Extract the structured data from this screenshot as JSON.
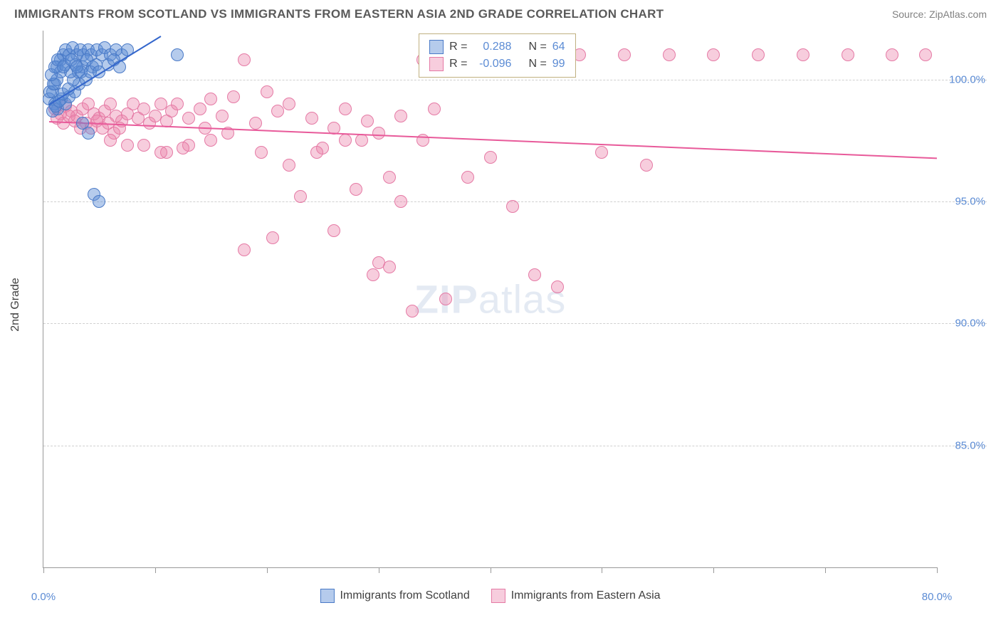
{
  "header": {
    "title": "IMMIGRANTS FROM SCOTLAND VS IMMIGRANTS FROM EASTERN ASIA 2ND GRADE CORRELATION CHART",
    "source": "Source: ZipAtlas.com"
  },
  "chart": {
    "type": "scatter",
    "y_axis_label": "2nd Grade",
    "watermark_a": "ZIP",
    "watermark_b": "atlas",
    "background_color": "#ffffff",
    "grid_color": "#d0d0d0",
    "axis_color": "#999999",
    "xlim": [
      0,
      80
    ],
    "ylim": [
      80,
      102
    ],
    "x_ticks": [
      0,
      10,
      20,
      30,
      40,
      50,
      60,
      70,
      80
    ],
    "x_tick_labels": {
      "0": "0.0%",
      "80": "80.0%"
    },
    "y_ticks": [
      85,
      90,
      95,
      100
    ],
    "y_tick_labels": {
      "85": "85.0%",
      "90": "90.0%",
      "95": "95.0%",
      "100": "100.0%"
    },
    "marker_radius": 9,
    "marker_opacity": 0.5,
    "series": [
      {
        "label": "Immigrants from Scotland",
        "color_fill": "rgba(91,139,212,0.45)",
        "color_stroke": "#4a7ac7",
        "trend_color": "#3366cc",
        "R": "0.288",
        "N": "64",
        "trend": {
          "x1": 0.5,
          "y1": 99.0,
          "x2": 10.5,
          "y2": 101.8
        },
        "points": [
          [
            0.5,
            99.2
          ],
          [
            0.8,
            99.5
          ],
          [
            1.0,
            99.8
          ],
          [
            1.2,
            100.5
          ],
          [
            1.5,
            100.8
          ],
          [
            1.8,
            101.0
          ],
          [
            2.0,
            101.2
          ],
          [
            2.3,
            101.0
          ],
          [
            2.6,
            101.3
          ],
          [
            3.0,
            101.0
          ],
          [
            3.3,
            101.2
          ],
          [
            3.6,
            101.0
          ],
          [
            4.0,
            101.2
          ],
          [
            4.3,
            101.0
          ],
          [
            4.8,
            101.2
          ],
          [
            5.2,
            101.0
          ],
          [
            5.5,
            101.3
          ],
          [
            6.0,
            101.0
          ],
          [
            6.5,
            101.2
          ],
          [
            7.0,
            101.0
          ],
          [
            7.5,
            101.2
          ],
          [
            1.0,
            99.0
          ],
          [
            1.3,
            98.8
          ],
          [
            1.6,
            99.2
          ],
          [
            2.0,
            99.0
          ],
          [
            2.3,
            99.3
          ],
          [
            2.8,
            99.5
          ],
          [
            3.2,
            99.8
          ],
          [
            0.8,
            98.7
          ],
          [
            1.1,
            98.9
          ],
          [
            1.4,
            99.1
          ],
          [
            1.7,
            99.4
          ],
          [
            2.2,
            99.6
          ],
          [
            2.7,
            100.0
          ],
          [
            3.1,
            100.3
          ],
          [
            3.5,
            100.5
          ],
          [
            3.9,
            100.8
          ],
          [
            4.4,
            100.5
          ],
          [
            0.6,
            99.5
          ],
          [
            0.9,
            99.8
          ],
          [
            1.2,
            100.0
          ],
          [
            1.5,
            100.3
          ],
          [
            1.9,
            100.6
          ],
          [
            2.4,
            100.3
          ],
          [
            2.9,
            100.6
          ],
          [
            3.4,
            100.3
          ],
          [
            3.8,
            100.0
          ],
          [
            4.2,
            100.3
          ],
          [
            4.7,
            100.6
          ],
          [
            5.0,
            100.3
          ],
          [
            5.8,
            100.6
          ],
          [
            6.3,
            100.8
          ],
          [
            6.8,
            100.5
          ],
          [
            12.0,
            101.0
          ],
          [
            3.5,
            98.2
          ],
          [
            4.0,
            97.8
          ],
          [
            4.5,
            95.3
          ],
          [
            5.0,
            95.0
          ],
          [
            0.7,
            100.2
          ],
          [
            1.0,
            100.5
          ],
          [
            1.3,
            100.8
          ],
          [
            1.8,
            100.5
          ],
          [
            2.5,
            100.8
          ],
          [
            3.0,
            100.5
          ]
        ]
      },
      {
        "label": "Immigrants from Eastern Asia",
        "color_fill": "rgba(235,130,170,0.4)",
        "color_stroke": "#e57aa5",
        "trend_color": "#e85a9a",
        "R": "-0.096",
        "N": "99",
        "trend": {
          "x1": 0.5,
          "y1": 98.3,
          "x2": 80,
          "y2": 96.8
        },
        "points": [
          [
            1.0,
            98.8
          ],
          [
            1.5,
            98.6
          ],
          [
            2.0,
            98.9
          ],
          [
            2.5,
            98.7
          ],
          [
            3.0,
            98.5
          ],
          [
            3.5,
            98.8
          ],
          [
            4.0,
            99.0
          ],
          [
            4.5,
            98.6
          ],
          [
            5.0,
            98.4
          ],
          [
            5.5,
            98.7
          ],
          [
            6.0,
            99.0
          ],
          [
            6.5,
            98.5
          ],
          [
            7.0,
            98.3
          ],
          [
            7.5,
            98.6
          ],
          [
            8.0,
            99.0
          ],
          [
            8.5,
            98.4
          ],
          [
            9.0,
            98.8
          ],
          [
            9.5,
            98.2
          ],
          [
            10.0,
            98.5
          ],
          [
            10.5,
            99.0
          ],
          [
            11.0,
            98.3
          ],
          [
            11.5,
            98.7
          ],
          [
            12.0,
            99.0
          ],
          [
            13.0,
            98.4
          ],
          [
            14.0,
            98.8
          ],
          [
            15.0,
            99.2
          ],
          [
            16.0,
            98.5
          ],
          [
            17.0,
            99.3
          ],
          [
            18.0,
            100.8
          ],
          [
            19.0,
            98.2
          ],
          [
            20.0,
            99.5
          ],
          [
            21.0,
            98.7
          ],
          [
            22.0,
            99.0
          ],
          [
            24.0,
            98.4
          ],
          [
            25.0,
            97.2
          ],
          [
            26.0,
            98.0
          ],
          [
            27.0,
            97.5
          ],
          [
            28.0,
            95.5
          ],
          [
            29.0,
            98.3
          ],
          [
            30.0,
            97.8
          ],
          [
            31.0,
            96.0
          ],
          [
            32.0,
            98.5
          ],
          [
            34.0,
            100.8
          ],
          [
            36.0,
            101.0
          ],
          [
            1.2,
            98.4
          ],
          [
            1.8,
            98.2
          ],
          [
            2.3,
            98.5
          ],
          [
            2.8,
            98.3
          ],
          [
            3.3,
            98.0
          ],
          [
            3.8,
            98.2
          ],
          [
            4.3,
            98.0
          ],
          [
            4.8,
            98.3
          ],
          [
            5.3,
            98.0
          ],
          [
            5.8,
            98.2
          ],
          [
            6.3,
            97.8
          ],
          [
            6.8,
            98.0
          ],
          [
            18.0,
            93.0
          ],
          [
            19.5,
            97.0
          ],
          [
            20.5,
            93.5
          ],
          [
            22.0,
            96.5
          ],
          [
            23.0,
            95.2
          ],
          [
            24.5,
            97.0
          ],
          [
            26.0,
            93.8
          ],
          [
            27.0,
            98.8
          ],
          [
            28.5,
            97.5
          ],
          [
            29.5,
            92.0
          ],
          [
            30.0,
            92.5
          ],
          [
            31.0,
            92.3
          ],
          [
            32.0,
            95.0
          ],
          [
            33.0,
            90.5
          ],
          [
            34.0,
            97.5
          ],
          [
            36.0,
            91.0
          ],
          [
            38.0,
            96.0
          ],
          [
            40.0,
            96.8
          ],
          [
            42.0,
            94.8
          ],
          [
            44.0,
            92.0
          ],
          [
            46.0,
            91.5
          ],
          [
            48.0,
            101.0
          ],
          [
            50.0,
            97.0
          ],
          [
            52.0,
            101.0
          ],
          [
            54.0,
            96.5
          ],
          [
            56.0,
            101.0
          ],
          [
            60.0,
            101.0
          ],
          [
            64.0,
            101.0
          ],
          [
            68.0,
            101.0
          ],
          [
            72.0,
            101.0
          ],
          [
            76.0,
            101.0
          ],
          [
            79.0,
            101.0
          ],
          [
            9.0,
            97.3
          ],
          [
            11.0,
            97.0
          ],
          [
            13.0,
            97.3
          ],
          [
            15.0,
            97.5
          ],
          [
            10.5,
            97.0
          ],
          [
            12.5,
            97.2
          ],
          [
            14.5,
            98.0
          ],
          [
            16.5,
            97.8
          ],
          [
            6.0,
            97.5
          ],
          [
            7.5,
            97.3
          ],
          [
            35.0,
            98.8
          ]
        ]
      }
    ],
    "stats_legend": {
      "r_label": "R =",
      "n_label": "N ="
    }
  }
}
